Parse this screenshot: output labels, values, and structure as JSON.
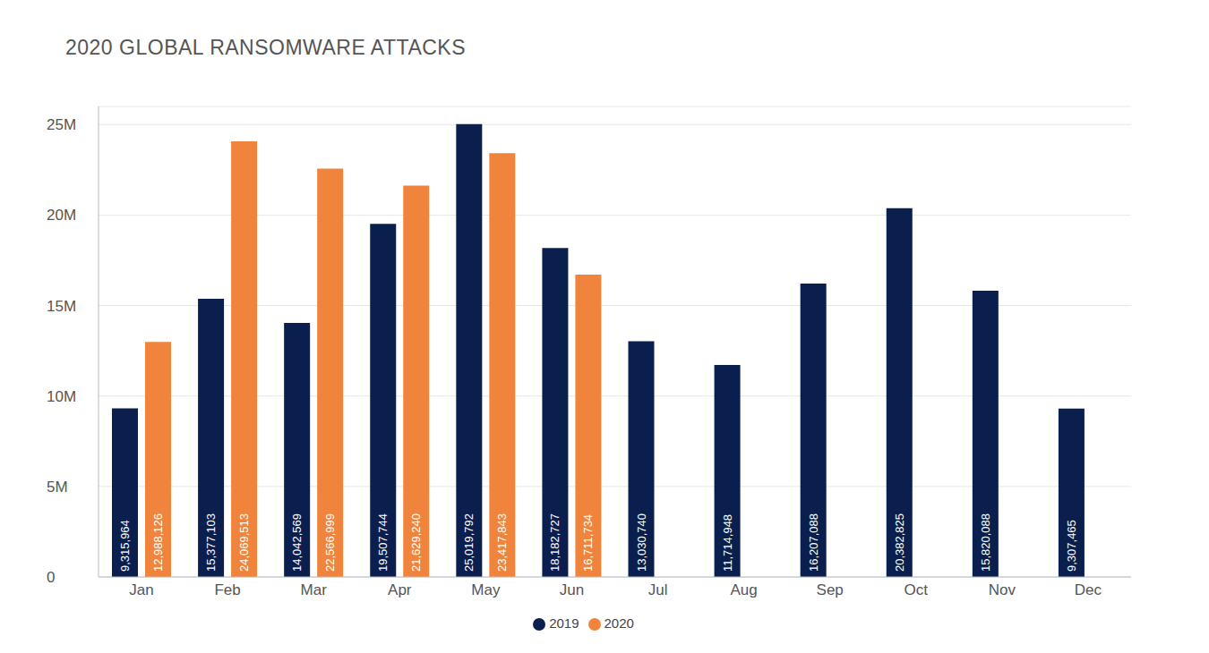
{
  "chart_data": {
    "type": "bar",
    "title": "2020 GLOBAL RANSOMWARE ATTACKS",
    "categories": [
      "Jan",
      "Feb",
      "Mar",
      "Apr",
      "May",
      "Jun",
      "Jul",
      "Aug",
      "Sep",
      "Oct",
      "Nov",
      "Dec"
    ],
    "series": [
      {
        "name": "2019",
        "color": "#0b1f4e",
        "values": [
          9315964,
          15377103,
          14042569,
          19507744,
          25019792,
          18182727,
          13030740,
          11714948,
          16207088,
          20382825,
          15820088,
          9307465
        ],
        "value_labels": [
          "9,315,964",
          "15,377,103",
          "14,042,569",
          "19,507,744",
          "25,019,792",
          "18,182,727",
          "13,030,740",
          "11,714,948",
          "16,207,088",
          "20,382,825",
          "15,820,088",
          "9,307,465"
        ]
      },
      {
        "name": "2020",
        "color": "#f0843c",
        "values": [
          12988126,
          24069513,
          22566999,
          21629240,
          23417843,
          16711734,
          null,
          null,
          null,
          null,
          null,
          null
        ],
        "value_labels": [
          "12,988,126",
          "24,069,513",
          "22,566,999",
          "21,629,240",
          "23,417,843",
          "16,711,734",
          null,
          null,
          null,
          null,
          null,
          null
        ]
      }
    ],
    "ylim": [
      0,
      26000000
    ],
    "yticks": [
      0,
      {
        "value": 5000000,
        "label": "5M"
      },
      {
        "value": 10000000,
        "label": "10M"
      },
      {
        "value": 15000000,
        "label": "15M"
      },
      {
        "value": 20000000,
        "label": "20M"
      },
      {
        "value": 25000000,
        "label": "25M"
      }
    ],
    "grid": true,
    "legend": "bottom",
    "data_labels": true
  }
}
